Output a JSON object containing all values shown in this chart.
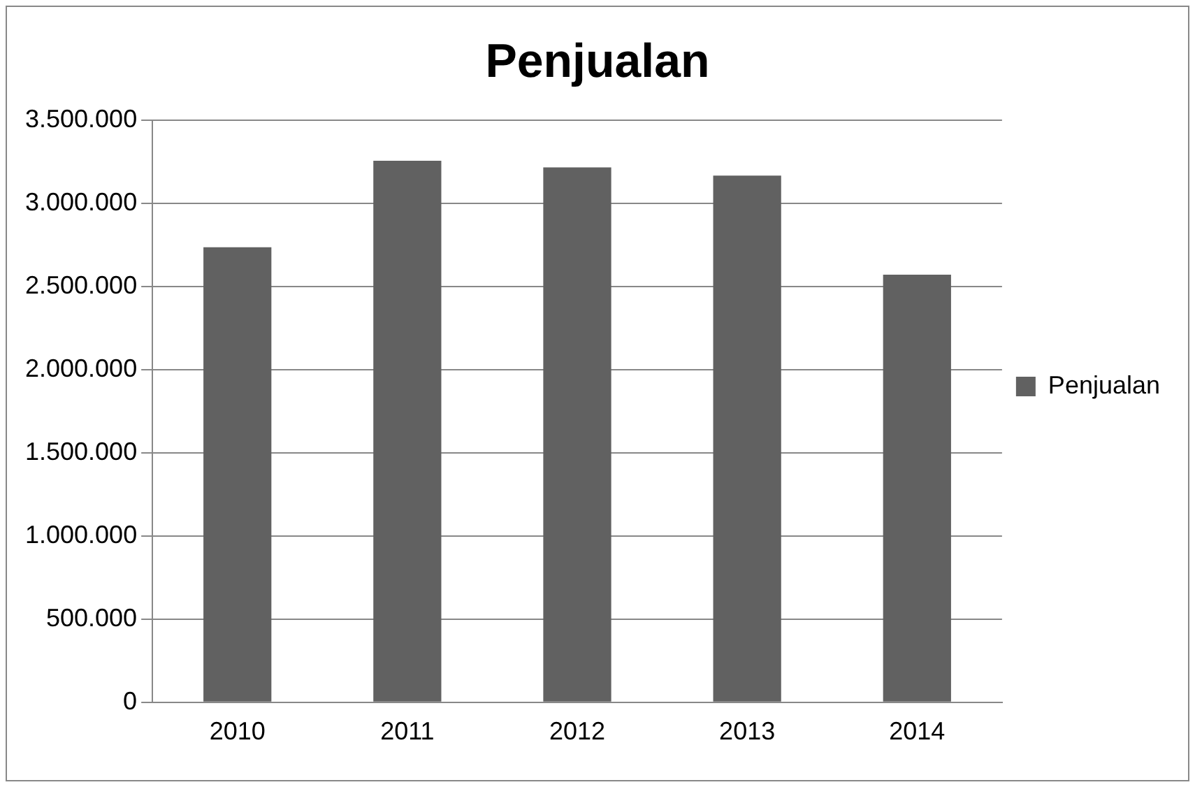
{
  "chart_data": {
    "type": "bar",
    "title": "Penjualan",
    "categories": [
      "2010",
      "2011",
      "2012",
      "2013",
      "2014"
    ],
    "series": [
      {
        "name": "Penjualan",
        "color": "#616161",
        "values": [
          2735000,
          3255000,
          3215000,
          3165000,
          2570000
        ]
      }
    ],
    "ylim": [
      0,
      3500000
    ],
    "yticks": [
      {
        "value": 0,
        "label": "0"
      },
      {
        "value": 500000,
        "label": "500.000"
      },
      {
        "value": 1000000,
        "label": "1.000.000"
      },
      {
        "value": 1500000,
        "label": "1.500.000"
      },
      {
        "value": 2000000,
        "label": "2.000.000"
      },
      {
        "value": 2500000,
        "label": "2.500.000"
      },
      {
        "value": 3000000,
        "label": "3.000.000"
      },
      {
        "value": 3500000,
        "label": "3.500.000"
      }
    ],
    "grid": "y",
    "legend": "right"
  }
}
